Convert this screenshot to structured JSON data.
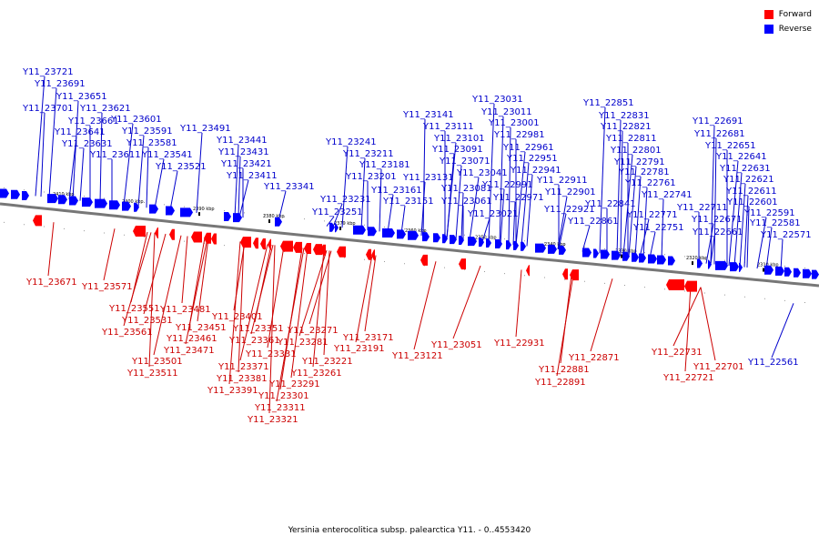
{
  "caption": "Yersinia enterocolitica subsp. palearctica Y11. - 0..4553420",
  "legend": {
    "forward_label": "Forward",
    "reverse_label": "Reverse",
    "forward_color": "#ff0000",
    "reverse_color": "#0000ff"
  },
  "strand_colors": {
    "forward": "#ff0000",
    "reverse": "#0000ff",
    "forward_label": "#cc0000",
    "reverse_label": "#0000cc"
  },
  "ticks": [
    "2410 kbp",
    "2400 kbp",
    "2390 kbp",
    "2380 kbp",
    "2370 kbp",
    "2360 kbp",
    "2350 kbp",
    "2340 kbp",
    "2330 kbp",
    "2320 kbp",
    "2310 kbp"
  ],
  "genes": {
    "reverse": [
      "Y11_23721",
      "Y11_23691",
      "Y11_23651",
      "Y11_23701",
      "Y11_23621",
      "Y11_23661",
      "Y11_23601",
      "Y11_23641",
      "Y11_23591",
      "Y11_23631",
      "Y11_23581",
      "Y11_23611",
      "Y11_23541",
      "Y11_23521",
      "Y11_23491",
      "Y11_23441",
      "Y11_23431",
      "Y11_23421",
      "Y11_23411",
      "Y11_23341",
      "Y11_23241",
      "Y11_23211",
      "Y11_23181",
      "Y11_23201",
      "Y11_23231",
      "Y11_23251",
      "Y11_23161",
      "Y11_23151",
      "Y11_23141",
      "Y11_23111",
      "Y11_23101",
      "Y11_23091",
      "Y11_23071",
      "Y11_23131",
      "Y11_23081",
      "Y11_23061",
      "Y11_23041",
      "Y11_23021",
      "Y11_23031",
      "Y11_23011",
      "Y11_23001",
      "Y11_22981",
      "Y11_22961",
      "Y11_22951",
      "Y11_22941",
      "Y11_22991",
      "Y11_22971",
      "Y11_22911",
      "Y11_22901",
      "Y11_22921",
      "Y11_22851",
      "Y11_22831",
      "Y11_22821",
      "Y11_22811",
      "Y11_22801",
      "Y11_22791",
      "Y11_22781",
      "Y11_22761",
      "Y11_22741",
      "Y11_22841",
      "Y11_22771",
      "Y11_22861",
      "Y11_22751",
      "Y11_22691",
      "Y11_22681",
      "Y11_22651",
      "Y11_22641",
      "Y11_22631",
      "Y11_22621",
      "Y11_22611",
      "Y11_22601",
      "Y11_22711",
      "Y11_22591",
      "Y11_22671",
      "Y11_22581",
      "Y11_22661",
      "Y11_22571",
      "Y11_22561"
    ],
    "forward": [
      "Y11_23671",
      "Y11_23571",
      "Y11_23551",
      "Y11_23531",
      "Y11_23561",
      "Y11_23481",
      "Y11_23451",
      "Y11_23461",
      "Y11_23471",
      "Y11_23501",
      "Y11_23511",
      "Y11_23401",
      "Y11_23351",
      "Y11_23361",
      "Y11_23371",
      "Y11_23381",
      "Y11_23391",
      "Y11_23331",
      "Y11_23271",
      "Y11_23281",
      "Y11_23221",
      "Y11_23261",
      "Y11_23291",
      "Y11_23301",
      "Y11_23311",
      "Y11_23321",
      "Y11_23171",
      "Y11_23191",
      "Y11_23121",
      "Y11_23051",
      "Y11_22931",
      "Y11_22881",
      "Y11_22891",
      "Y11_22871",
      "Y11_22731",
      "Y11_22721",
      "Y11_22701"
    ]
  }
}
